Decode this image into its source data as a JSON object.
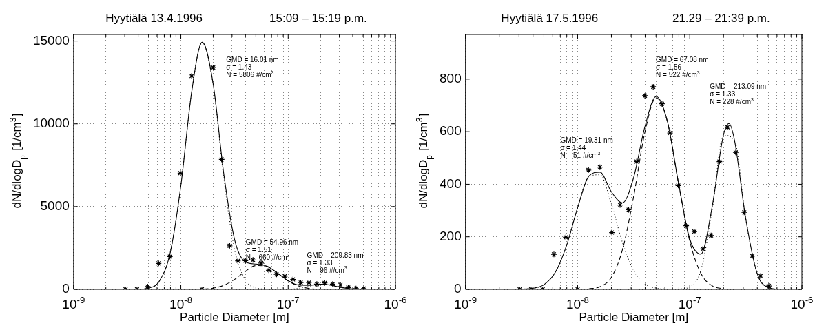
{
  "chart_data": [
    {
      "type": "line",
      "title": "Hyytiälä 13.4.1996",
      "subtitle": "15:09 – 15:19 p.m.",
      "xlabel": "Particle Diameter [m]",
      "ylabel": "dN/dlogD$_{p}$ [1/cm$^{3}$]",
      "log": "x",
      "grid": true,
      "xlim": [
        1e-09,
        1e-06
      ],
      "xticks": [
        {
          "value": 1e-09,
          "label": "10$^{-9}$"
        },
        {
          "value": 2e-09,
          "label": null
        },
        {
          "value": 3e-09,
          "label": null
        },
        {
          "value": 4e-09,
          "label": null
        },
        {
          "value": 5e-09,
          "label": null
        },
        {
          "value": 6e-09,
          "label": null
        },
        {
          "value": 7e-09,
          "label": null
        },
        {
          "value": 8e-09,
          "label": null
        },
        {
          "value": 9e-09,
          "label": null
        },
        {
          "value": 1e-08,
          "label": "10$^{-8}$"
        },
        {
          "value": 2e-08,
          "label": null
        },
        {
          "value": 3e-08,
          "label": null
        },
        {
          "value": 4e-08,
          "label": null
        },
        {
          "value": 5e-08,
          "label": null
        },
        {
          "value": 6e-08,
          "label": null
        },
        {
          "value": 7e-08,
          "label": null
        },
        {
          "value": 8e-08,
          "label": null
        },
        {
          "value": 9e-08,
          "label": null
        },
        {
          "value": 1e-07,
          "label": "10$^{-7}$"
        },
        {
          "value": 2e-07,
          "label": null
        },
        {
          "value": 3e-07,
          "label": null
        },
        {
          "value": 4e-07,
          "label": null
        },
        {
          "value": 5e-07,
          "label": null
        },
        {
          "value": 6e-07,
          "label": null
        },
        {
          "value": 7e-07,
          "label": null
        },
        {
          "value": 8e-07,
          "label": null
        },
        {
          "value": 9e-07,
          "label": null
        },
        {
          "value": 1e-06,
          "label": "10$^{-6}$"
        }
      ],
      "ylim": [
        0,
        15400
      ],
      "yticks": [
        0,
        5000,
        10000,
        15000
      ],
      "annotations": [
        "GMD = 16.01 nm\nσ = 1.43\nN = 5806 #/cm$^{3}$",
        "GMD = 54.96 nm\nσ = 1.51\nN = 660 #/cm$^{3}$",
        "GMD = 209.83 nm\nσ = 1.33\nN = 96 #/cm$^{3}$"
      ],
      "series": [
        {
          "type": "scatter",
          "color": "#000000",
          "marker": "cross",
          "x": [
            3.05e-09,
            3.9e-09,
            4.9e-09,
            6.2e-09,
            7.9e-09,
            9.9e-09,
            1.26e-08,
            1.57e-08,
            2e-08,
            2.4e-08,
            2.85e-08,
            3.4e-08,
            4e-08,
            4.7e-08,
            5.6e-08,
            6.6e-08,
            7.8e-08,
            9.3e-08,
            1.11e-07,
            1.31e-07,
            1.56e-07,
            1.85e-07,
            2.19e-07,
            2.6e-07,
            3.07e-07,
            3.63e-07,
            4.29e-07,
            5.07e-07
          ],
          "values": [
            0,
            0,
            170,
            1570,
            1980,
            7020,
            12890,
            0,
            13400,
            7850,
            2630,
            1720,
            1730,
            1780,
            1590,
            1150,
            910,
            800,
            600,
            410,
            410,
            320,
            390,
            320,
            270,
            110,
            50,
            50
          ]
        },
        {
          "type": "line",
          "color": "#000000",
          "line_style": "solid",
          "x": [
            2.51e-09,
            3.16e-09,
            3.98e-09,
            5.01e-09,
            6.31e-09,
            7.94e-09,
            1e-08,
            1.26e-08,
            1.58e-08,
            2e-08,
            2.51e-08,
            3.16e-08,
            3.98e-08,
            5.01e-08,
            6.31e-08,
            7.94e-08,
            1e-07,
            1.26e-07,
            1.58e-07,
            2e-07,
            2.51e-07,
            3.16e-07,
            3.98e-07,
            5.01e-07,
            6.31e-07
          ],
          "values": [
            0,
            1,
            8,
            77,
            504,
            2190,
            6273,
            11916,
            14926,
            12412,
            6991,
            3037,
            1665,
            1527,
            1401,
            988,
            523,
            257,
            244,
            315,
            255,
            110,
            25,
            3,
            0
          ]
        },
        {
          "type": "line",
          "color": "#000000",
          "line_style": "dotted",
          "x": [
            3.16e-09,
            3.98e-09,
            5.01e-09,
            6.31e-09,
            7.94e-09,
            1e-08,
            1.26e-08,
            1.58e-08,
            2e-08,
            2.51e-08,
            3.16e-08,
            3.98e-08,
            5.01e-08,
            6.31e-08
          ],
          "values": [
            1,
            8,
            77,
            504,
            2190,
            6273,
            11914,
            14910,
            12340,
            6749,
            2438,
            582,
            92,
            10
          ]
        },
        {
          "type": "line",
          "color": "#000000",
          "line_style": "dashed",
          "x": [
            1e-08,
            1.26e-08,
            1.58e-08,
            2e-08,
            2.51e-08,
            3.16e-08,
            3.98e-08,
            5.01e-08,
            6.31e-08,
            7.94e-08,
            1e-07,
            1.26e-07,
            1.58e-07,
            2e-07,
            2.51e-07,
            3.16e-07
          ],
          "values": [
            0,
            2,
            16,
            72,
            242,
            599,
            1083,
            1435,
            1391,
            987,
            512,
            195,
            54,
            11,
            2,
            0
          ]
        },
        {
          "type": "line",
          "color": "#000000",
          "line_style": "dotted",
          "x": [
            7.94e-08,
            1e-07,
            1.26e-07,
            1.58e-07,
            2e-07,
            2.51e-07,
            3.16e-07,
            3.98e-07,
            5.01e-07,
            6.31e-07
          ],
          "values": [
            1,
            11,
            62,
            190,
            304,
            253,
            110,
            25,
            3,
            0
          ]
        }
      ]
    },
    {
      "type": "line",
      "title": "Hyytiälä 17.5.1996",
      "subtitle": "21.29 – 21:39 p.m.",
      "xlabel": "Particle Diameter [m]",
      "ylabel": "dN/dlogD$_{p}$ [1/cm$^{3}$]",
      "log": "x",
      "grid": true,
      "xlim": [
        1e-09,
        1e-06
      ],
      "xticks": [
        {
          "value": 1e-09,
          "label": "10$^{-9}$"
        },
        {
          "value": 2e-09,
          "label": null
        },
        {
          "value": 3e-09,
          "label": null
        },
        {
          "value": 4e-09,
          "label": null
        },
        {
          "value": 5e-09,
          "label": null
        },
        {
          "value": 6e-09,
          "label": null
        },
        {
          "value": 7e-09,
          "label": null
        },
        {
          "value": 8e-09,
          "label": null
        },
        {
          "value": 9e-09,
          "label": null
        },
        {
          "value": 1e-08,
          "label": "10$^{-8}$"
        },
        {
          "value": 2e-08,
          "label": null
        },
        {
          "value": 3e-08,
          "label": null
        },
        {
          "value": 4e-08,
          "label": null
        },
        {
          "value": 5e-08,
          "label": null
        },
        {
          "value": 6e-08,
          "label": null
        },
        {
          "value": 7e-08,
          "label": null
        },
        {
          "value": 8e-08,
          "label": null
        },
        {
          "value": 9e-08,
          "label": null
        },
        {
          "value": 1e-07,
          "label": "10$^{-7}$"
        },
        {
          "value": 2e-07,
          "label": null
        },
        {
          "value": 3e-07,
          "label": null
        },
        {
          "value": 4e-07,
          "label": null
        },
        {
          "value": 5e-07,
          "label": null
        },
        {
          "value": 6e-07,
          "label": null
        },
        {
          "value": 7e-07,
          "label": null
        },
        {
          "value": 8e-07,
          "label": null
        },
        {
          "value": 9e-07,
          "label": null
        },
        {
          "value": 1e-06,
          "label": "10$^{-6}$"
        }
      ],
      "ylim": [
        0,
        970
      ],
      "yticks": [
        0,
        200,
        400,
        600,
        800
      ],
      "annotations": [
        "GMD = 19.31 nm\nσ = 1.44\nN = 51 #/cm$^{3}$",
        "GMD = 67.08 nm\nσ = 1.56\nN = 522 #/cm$^{3}$",
        "GMD = 213.09 nm\nσ = 1.33\nN = 228 #/cm$^{3}$"
      ],
      "series": [
        {
          "type": "scatter",
          "color": "#000000",
          "marker": "cross",
          "x": [
            3.04e-09,
            3.85e-09,
            4.88e-09,
            6.14e-09,
            7.85e-09,
            1e-08,
            1.25e-08,
            1.58e-08,
            2.02e-08,
            2.39e-08,
            2.85e-08,
            3.36e-08,
            3.98e-08,
            4.72e-08,
            5.65e-08,
            6.67e-08,
            7.9e-08,
            9.3e-08,
            1.1e-07,
            1.31e-07,
            1.55e-07,
            1.84e-07,
            2.17e-07,
            2.57e-07,
            3.06e-07,
            3.61e-07,
            4.28e-07,
            5.07e-07
          ],
          "values": [
            0,
            0,
            0,
            133,
            198,
            0,
            454,
            465,
            216,
            321,
            303,
            486,
            737,
            771,
            706,
            595,
            395,
            242,
            220,
            154,
            205,
            486,
            617,
            521,
            293,
            127,
            51,
            13
          ]
        },
        {
          "type": "line",
          "color": "#000000",
          "line_style": "solid",
          "x": [
            2.51e-09,
            3.16e-09,
            3.98e-09,
            5.01e-09,
            6.31e-09,
            7.94e-09,
            1e-08,
            1.26e-08,
            1.58e-08,
            2e-08,
            2.51e-08,
            3.16e-08,
            3.98e-08,
            5.01e-08,
            6.31e-08,
            7.94e-08,
            1e-07,
            1.26e-07,
            1.58e-07,
            2e-07,
            2.24e-07,
            2.51e-07,
            3.16e-07,
            3.98e-07,
            5.01e-07,
            6.31e-07
          ],
          "values": [
            0,
            1,
            4,
            18,
            64,
            165,
            311,
            431,
            446,
            371,
            329,
            426,
            619,
            734,
            640,
            404,
            192,
            134,
            312,
            588,
            631,
            566,
            268,
            62,
            7,
            0
          ]
        },
        {
          "type": "line",
          "color": "#000000",
          "line_style": "dotted",
          "x": [
            3.16e-09,
            3.98e-09,
            5.01e-09,
            6.31e-09,
            7.94e-09,
            1e-08,
            1.26e-08,
            1.58e-08,
            2e-08,
            2.51e-08,
            3.16e-08,
            3.98e-08,
            5.01e-08,
            6.31e-08
          ],
          "values": [
            1,
            4,
            18,
            64,
            165,
            311,
            429,
            436,
            325,
            178,
            72,
            21,
            5,
            1
          ]
        },
        {
          "type": "line",
          "color": "#000000",
          "line_style": "dashed",
          "x": [
            1.26e-08,
            1.58e-08,
            2e-08,
            2.51e-08,
            3.16e-08,
            3.98e-08,
            5.01e-08,
            6.31e-08,
            7.94e-08,
            1e-07,
            1.26e-07,
            1.58e-07,
            2e-07
          ],
          "values": [
            2,
            10,
            46,
            151,
            354,
            598,
            729,
            639,
            403,
            183,
            60,
            14,
            2
          ]
        },
        {
          "type": "line",
          "color": "#000000",
          "line_style": "dotted",
          "x": [
            7.94e-08,
            1e-07,
            1.26e-07,
            1.58e-07,
            2e-07,
            2.51e-07,
            3.16e-07,
            3.98e-07,
            5.01e-07,
            6.31e-07
          ],
          "values": [
            1,
            9,
            74,
            298,
            586,
            566,
            268,
            62,
            7,
            0
          ]
        }
      ]
    }
  ]
}
